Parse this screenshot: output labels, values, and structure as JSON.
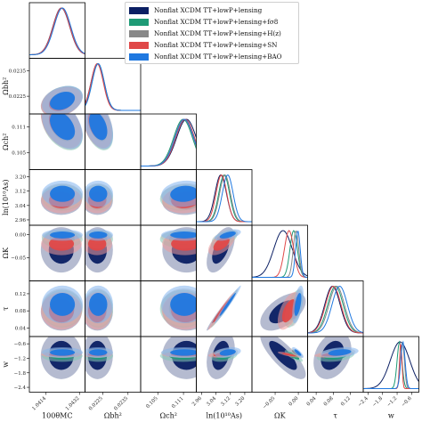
{
  "chart_data": {
    "type": "triangle-corner-plot",
    "parameters": [
      "100θ_MC",
      "Ω_b h²",
      "Ω_c h²",
      "ln(10¹⁰A_s)",
      "Ω_K",
      "τ",
      "w"
    ],
    "axis_labels": [
      "100θMC",
      "Ωbh²",
      "Ωch²",
      "ln(10¹⁰As)",
      "ΩK",
      "τ",
      "w"
    ],
    "ranges": [
      [
        1.0405,
        1.0435
      ],
      [
        0.0218,
        0.024
      ],
      [
        0.101,
        0.114
      ],
      [
        2.93,
        3.24
      ],
      [
        -0.1,
        0.02
      ],
      [
        0.02,
        0.15
      ],
      [
        -2.6,
        -0.3
      ]
    ],
    "ticks": [
      [
        1.0414,
        1.0432
      ],
      [
        0.0225,
        0.0235
      ],
      [
        0.105,
        0.111
      ],
      [
        2.96,
        3.04,
        3.12,
        3.2
      ],
      [
        -0.05,
        0.0
      ],
      [
        0.04,
        0.08,
        0.12
      ],
      [
        -2.4,
        -1.8,
        -1.2,
        -0.6
      ]
    ],
    "tick_labels": [
      [
        "1.0414",
        "1.0432"
      ],
      [
        "0.0225",
        "0.0235"
      ],
      [
        "0.105",
        "0.111"
      ],
      [
        "2.96",
        "3.04",
        "3.12",
        "3.20"
      ],
      [
        "−0.05",
        "0.00"
      ],
      [
        "0.04",
        "0.08",
        "0.12"
      ],
      [
        "−2.4",
        "−1.8",
        "−1.2",
        "−0.6"
      ]
    ],
    "series": [
      {
        "name": "Nonflat XCDM TT+lowP+lensing",
        "color": "#0b1f63",
        "mean": [
          1.04222,
          0.02229,
          0.1117,
          3.066,
          -0.033,
          0.078,
          -1.08
        ],
        "sigma": [
          0.00045,
          0.00025,
          0.0023,
          0.032,
          0.02,
          0.018,
          0.4
        ]
      },
      {
        "name": "Nonflat XCDM TT+lowP+lensing+fσ8",
        "color": "#1e9b76",
        "mean": [
          1.04227,
          0.02232,
          0.1109,
          3.085,
          -0.01,
          0.085,
          -1.1
        ],
        "sigma": [
          0.00045,
          0.00024,
          0.0022,
          0.03,
          0.008,
          0.018,
          0.1
        ]
      },
      {
        "name": "Nonflat XCDM TT+lowP+lensing+H(z)",
        "color": "#888888",
        "mean": [
          1.04226,
          0.02231,
          0.1111,
          3.09,
          -0.005,
          0.088,
          -0.98
        ],
        "sigma": [
          0.00045,
          0.00024,
          0.0022,
          0.03,
          0.006,
          0.018,
          0.08
        ]
      },
      {
        "name": "Nonflat XCDM TT+lowP+lensing+SN",
        "color": "#e04848",
        "mean": [
          1.04223,
          0.02228,
          0.1114,
          3.07,
          -0.02,
          0.08,
          -1.05
        ],
        "sigma": [
          0.00045,
          0.00024,
          0.0022,
          0.03,
          0.01,
          0.018,
          0.05
        ]
      },
      {
        "name": "Nonflat XCDM TT+lowP+lensing+BAO",
        "color": "#1f78e0",
        "mean": [
          1.04228,
          0.02232,
          0.1112,
          3.105,
          -0.001,
          0.095,
          -0.96
        ],
        "sigma": [
          0.00045,
          0.00024,
          0.0022,
          0.03,
          0.005,
          0.018,
          0.09
        ]
      }
    ],
    "correlations": {
      "1-0": 0.3,
      "2-0": -0.4,
      "2-1": -0.4,
      "3-2": 0.1,
      "4-3": 0.55,
      "5-3": 0.98,
      "5-4": 0.55,
      "6-4": -0.8,
      "6-3": 0.3,
      "6-5": 0.3
    },
    "legend_position": "upper-right"
  }
}
